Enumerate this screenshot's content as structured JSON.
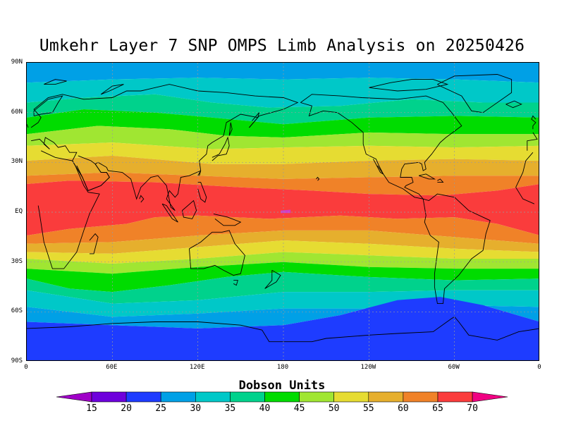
{
  "title": "Umkehr Layer 7 SNP OMPS Limb Analysis on 20250426",
  "units_label": "Dobson Units",
  "lat_ticks": [
    "90N",
    "60N",
    "30N",
    "EQ",
    "30S",
    "60S",
    "90S"
  ],
  "lon_ticks": [
    "0",
    "60E",
    "120E",
    "180",
    "120W",
    "60W",
    "0"
  ],
  "colorbar": {
    "labels": [
      "15",
      "20",
      "25",
      "30",
      "35",
      "40",
      "45",
      "50",
      "55",
      "60",
      "65",
      "70"
    ],
    "colors": [
      "#a000c8",
      "#6e00dc",
      "#1e3cff",
      "#00a0e6",
      "#00c8c8",
      "#00d28c",
      "#00dc00",
      "#a0e632",
      "#e6dc32",
      "#e6af2d",
      "#f08228",
      "#fa3c3c",
      "#f00082"
    ]
  },
  "map_data": {
    "projection": "equirectangular",
    "lon_range": [
      0,
      360
    ],
    "lat_range": [
      -90,
      90
    ],
    "bands": [
      {
        "name": "north-polar-30-35",
        "dobson_range": [
          30,
          35
        ],
        "color": "#00a0e6"
      },
      {
        "name": "north-35-40",
        "dobson_range": [
          35,
          40
        ],
        "color": "#00c8c8"
      },
      {
        "name": "north-40-45",
        "dobson_range": [
          40,
          45
        ],
        "color": "#00d28c"
      },
      {
        "name": "north-45-50",
        "dobson_range": [
          45,
          50
        ],
        "color": "#00dc00"
      },
      {
        "name": "north-50-55",
        "dobson_range": [
          50,
          55
        ],
        "color": "#a0e632"
      },
      {
        "name": "north-55-60",
        "dobson_range": [
          55,
          60
        ],
        "color": "#e6dc32"
      },
      {
        "name": "north-60-65",
        "dobson_range": [
          60,
          65
        ],
        "color": "#e6af2d"
      },
      {
        "name": "north-65-70",
        "dobson_range": [
          65,
          70
        ],
        "color": "#f08228"
      },
      {
        "name": "equatorial-70plus",
        "dobson_range": [
          70,
          75
        ],
        "color": "#fa3c3c"
      },
      {
        "name": "south-65-70",
        "dobson_range": [
          65,
          70
        ],
        "color": "#f08228"
      },
      {
        "name": "south-60-65",
        "dobson_range": [
          60,
          65
        ],
        "color": "#e6af2d"
      },
      {
        "name": "south-55-60",
        "dobson_range": [
          55,
          60
        ],
        "color": "#e6dc32"
      },
      {
        "name": "south-50-55",
        "dobson_range": [
          50,
          55
        ],
        "color": "#a0e632"
      },
      {
        "name": "south-45-50",
        "dobson_range": [
          45,
          50
        ],
        "color": "#00dc00"
      },
      {
        "name": "south-40-45",
        "dobson_range": [
          40,
          45
        ],
        "color": "#00d28c"
      },
      {
        "name": "south-35-40",
        "dobson_range": [
          35,
          40
        ],
        "color": "#00c8c8"
      },
      {
        "name": "south-30-35",
        "dobson_range": [
          30,
          35
        ],
        "color": "#00a0e6"
      },
      {
        "name": "south-polar-25-30",
        "dobson_range": [
          25,
          30
        ],
        "color": "#1e3cff"
      }
    ]
  }
}
